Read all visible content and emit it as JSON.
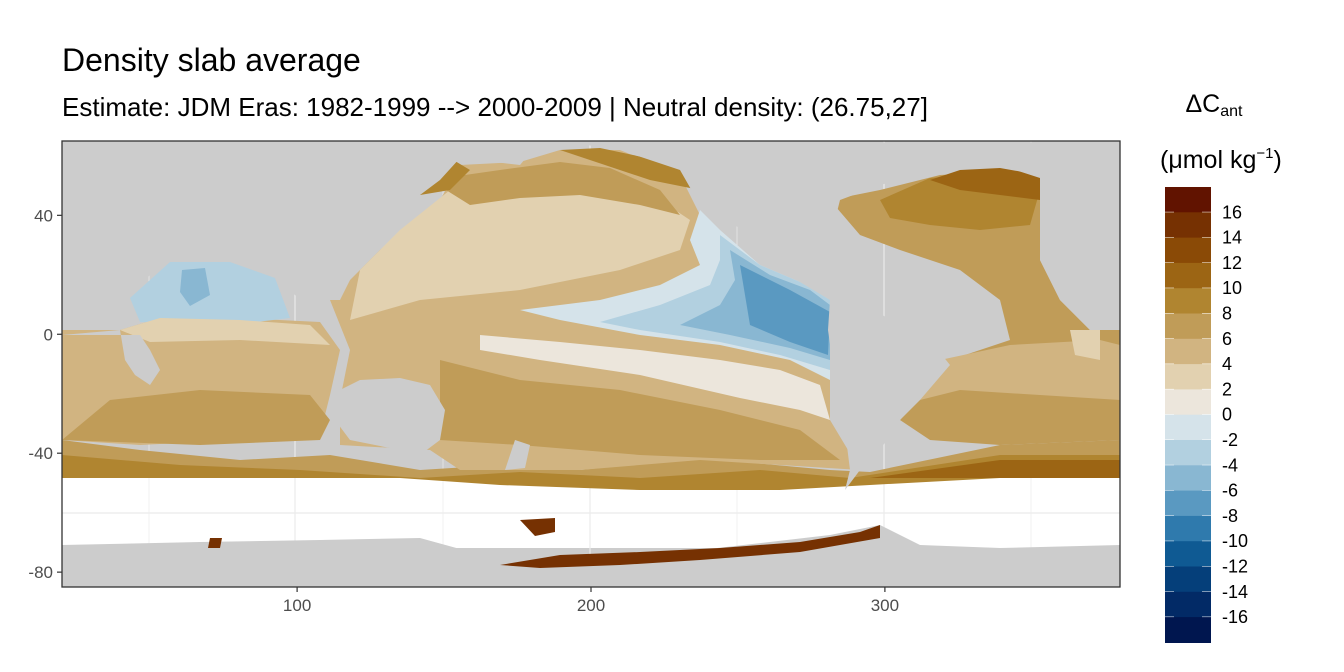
{
  "title": "Density slab average",
  "subtitle": "Estimate: JDM Eras: 1982-1999 --> 2000-2009 | Neutral density: (26.75,27]",
  "legend": {
    "title_symbol": "ΔC",
    "title_subscript": "ant",
    "unit_open": "(μmol kg",
    "unit_sup": "−1",
    "unit_close": ")",
    "bins": [
      {
        "label": "16",
        "color": "#611300"
      },
      {
        "label": "14",
        "color": "#763102"
      },
      {
        "label": "12",
        "color": "#8a4a06"
      },
      {
        "label": "10",
        "color": "#9c6514"
      },
      {
        "label": "8",
        "color": "#b08530"
      },
      {
        "label": "6",
        "color": "#c09c58"
      },
      {
        "label": "4",
        "color": "#d1b481"
      },
      {
        "label": "2",
        "color": "#e2d1b0"
      },
      {
        "label": "0",
        "color": "#ece6dc"
      },
      {
        "label": "-2",
        "color": "#d5e3ea"
      },
      {
        "label": "-4",
        "color": "#b2d0e0"
      },
      {
        "label": "-6",
        "color": "#89b7d2"
      },
      {
        "label": "-8",
        "color": "#5a99c1"
      },
      {
        "label": "-10",
        "color": "#2f7aad"
      },
      {
        "label": "-12",
        "color": "#0f5a93"
      },
      {
        "label": "-14",
        "color": "#053f7a"
      },
      {
        "label": "-16",
        "color": "#022a66"
      },
      {
        "label": "",
        "color": "#00164f"
      }
    ]
  },
  "axes": {
    "x_ticks": [
      "100",
      "200",
      "300"
    ],
    "y_ticks": [
      "40",
      "0",
      "-40",
      "-80"
    ],
    "xlim": [
      20,
      380
    ],
    "ylim": [
      -85,
      65
    ]
  },
  "colors": {
    "land": "#cccccc",
    "no_data": "#ffffff",
    "grid": "#ebebeb"
  }
}
